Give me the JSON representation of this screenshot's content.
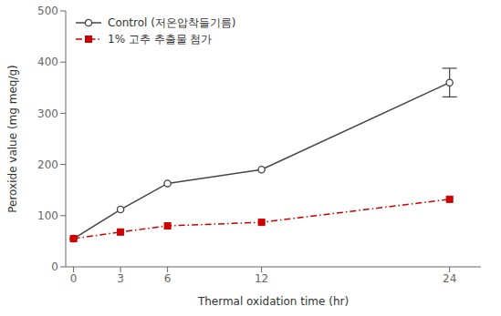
{
  "chart_data": {
    "type": "line",
    "x": [
      0,
      3,
      6,
      12,
      24
    ],
    "series": [
      {
        "name": "Control (저온압착들기름)",
        "color": "#444444",
        "values": [
          55,
          112,
          163,
          190,
          360
        ],
        "errors": [
          0,
          0,
          0,
          0,
          28
        ],
        "marker": "circle",
        "line_style": "solid"
      },
      {
        "name": "1% 고추 추출물 첨가",
        "color": "#cc0000",
        "values": [
          55,
          68,
          80,
          87,
          132
        ],
        "marker": "square",
        "line_style": "dashdot"
      }
    ],
    "xlabel": "Thermal oxidation time (hr)",
    "ylabel": "Peroxide value (mg meq/g)",
    "xlim": [
      -0.5,
      26
    ],
    "ylim": [
      0,
      500
    ],
    "xticks": [
      0,
      3,
      6,
      12,
      24
    ],
    "yticks": [
      0,
      100,
      200,
      300,
      400,
      500
    ],
    "grid": false,
    "legend": "upper left"
  }
}
